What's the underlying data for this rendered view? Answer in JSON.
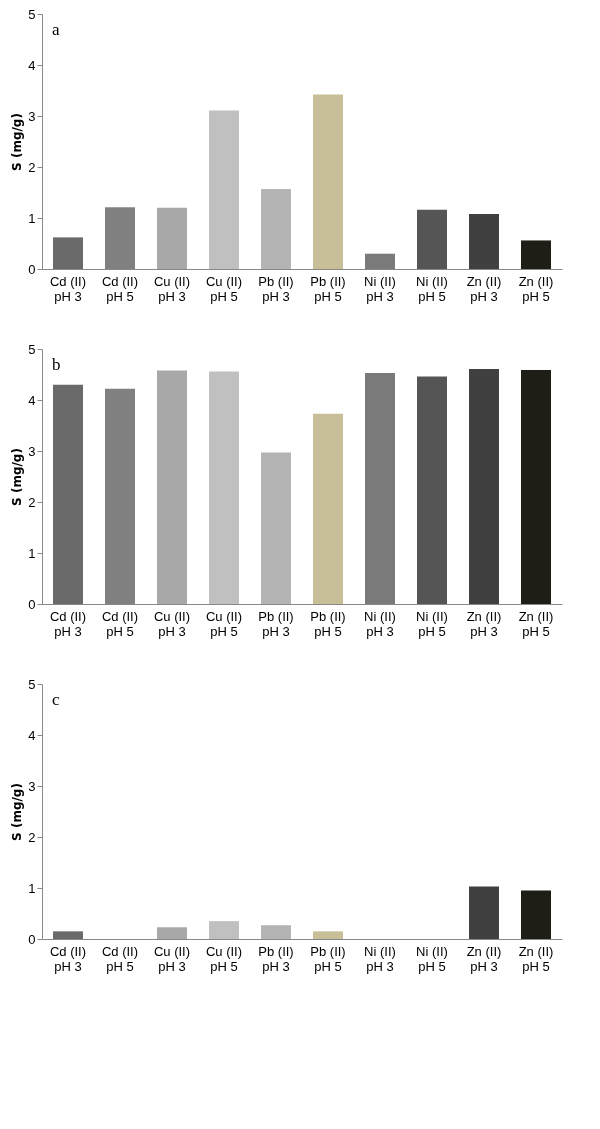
{
  "chart_data": [
    {
      "type": "bar",
      "annotations": [
        "a"
      ],
      "ylabel": "S (mg/g)",
      "categories": [
        "Cd (II) pH 3",
        "Cd (II) pH 5",
        "Cu (II) pH 3",
        "Cu (II) pH 5",
        "Pb (II) pH 3",
        "Pb (II) pH 5",
        "Ni (II) pH 3",
        "Ni (II) pH 5",
        "Zn (II) pH 3",
        "Zn (II) pH 5"
      ],
      "values": [
        0.62,
        1.21,
        1.2,
        3.11,
        1.57,
        3.42,
        0.3,
        1.16,
        1.08,
        0.56
      ],
      "colors": [
        "#6a6a6a",
        "#808080",
        "#a8a8a8",
        "#c0c0c0",
        "#b4b4b4",
        "#c8bf98",
        "#7a7a7a",
        "#555555",
        "#404040",
        "#1e1e16"
      ],
      "ylim": [
        0,
        5
      ],
      "yticks": [
        0,
        1,
        2,
        3,
        4,
        5
      ]
    },
    {
      "type": "bar",
      "annotations": [
        "b"
      ],
      "ylabel": "S (mg/g)",
      "categories": [
        "Cd (II) pH 3",
        "Cd (II) pH 5",
        "Cu (II) pH 3",
        "Cu (II) pH 5",
        "Pb (II) pH 3",
        "Pb (II) pH 5",
        "Ni (II) pH 3",
        "Ni (II) pH 5",
        "Zn (II) pH 3",
        "Zn (II) pH 5"
      ],
      "values": [
        4.3,
        4.22,
        4.58,
        4.56,
        2.97,
        3.73,
        4.53,
        4.46,
        4.61,
        4.59
      ],
      "colors": [
        "#6a6a6a",
        "#808080",
        "#a8a8a8",
        "#c0c0c0",
        "#b4b4b4",
        "#c8bf98",
        "#7a7a7a",
        "#555555",
        "#404040",
        "#1e1e16"
      ],
      "ylim": [
        0,
        5
      ],
      "yticks": [
        0,
        1,
        2,
        3,
        4,
        5
      ]
    },
    {
      "type": "bar",
      "annotations": [
        "c"
      ],
      "ylabel": "S (mg/g)",
      "categories": [
        "Cd (II) pH 3",
        "Cd (II) pH 5",
        "Cu (II) pH 3",
        "Cu (II) pH 5",
        "Pb (II) pH 3",
        "Pb (II) pH 5",
        "Ni (II) pH 3",
        "Ni (II) pH 5",
        "Zn (II) pH 3",
        "Zn (II) pH 5"
      ],
      "values": [
        0.15,
        0,
        0.23,
        0.35,
        0.27,
        0.15,
        0,
        0,
        1.03,
        0.95
      ],
      "colors": [
        "#6a6a6a",
        "#808080",
        "#a8a8a8",
        "#c0c0c0",
        "#b4b4b4",
        "#c8bf98",
        "#7a7a7a",
        "#555555",
        "#404040",
        "#1e1e16"
      ],
      "ylim": [
        0,
        5
      ],
      "yticks": [
        0,
        1,
        2,
        3,
        4,
        5
      ]
    }
  ]
}
